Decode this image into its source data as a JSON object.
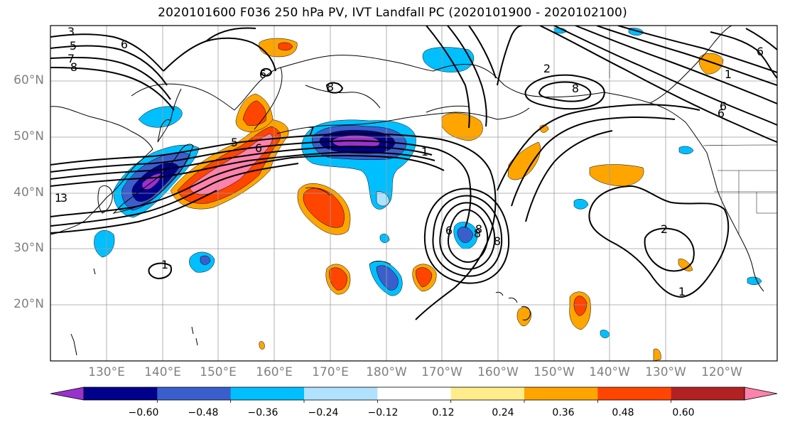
{
  "title": "2020101600 F036 250 hPa PV, IVT Landfall PC (2020101900 - 2020102100)",
  "lat_labels": [
    "60°N",
    "50°N",
    "40°N",
    "30°N",
    "20°N"
  ],
  "lon_labels": [
    "130°E",
    "140°E",
    "150°E",
    "160°E",
    "170°E",
    "180°W",
    "170°W",
    "160°W",
    "150°W",
    "140°W",
    "130°W",
    "120°W"
  ],
  "contour_labels": [
    "3",
    "5",
    "7",
    "8",
    "6",
    "6",
    "8",
    "2",
    "8",
    "6",
    "1",
    "6",
    "7",
    "1",
    "5",
    "6",
    "8",
    "2",
    "1",
    "1",
    "1",
    "6",
    "8",
    "3",
    "6",
    "8"
  ],
  "colorbar": {
    "tick_labels": [
      "−0.60",
      "−0.48",
      "−0.36",
      "−0.24",
      "−0.12",
      "0.12",
      "0.24",
      "0.36",
      "0.48",
      "0.60"
    ],
    "colors": [
      "#9932cc",
      "#00008b",
      "#3a5fcd",
      "#00bfff",
      "#b0e2ff",
      "#ffffff",
      "#ffec8b",
      "#ffa500",
      "#ff4500",
      "#b22222",
      "#ff82ab"
    ]
  },
  "map_data": {
    "type": "filled-contour-with-line-contours",
    "lat_range": [
      10,
      70
    ],
    "lon_range": [
      "120°E",
      "115°W"
    ],
    "fill_levels": [
      -0.6,
      -0.48,
      -0.36,
      -0.24,
      -0.12,
      0.12,
      0.24,
      0.36,
      0.48,
      0.6
    ],
    "grid": true
  }
}
